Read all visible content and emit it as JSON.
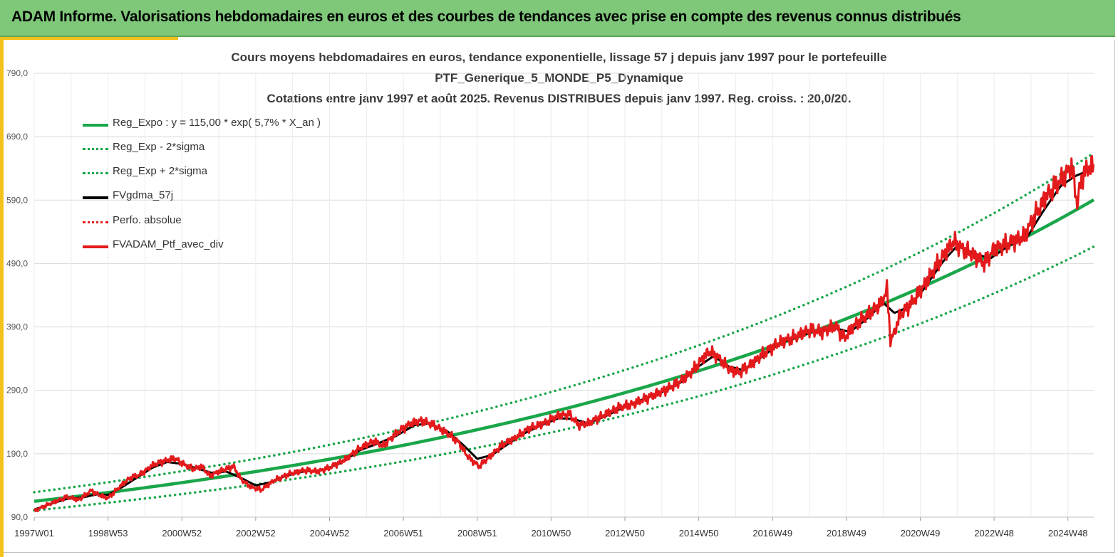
{
  "banner": {
    "title": "ADAM Informe. Valorisations hebdomadaires en euros et des courbes de tendances avec prise en compte des revenus connus distribués"
  },
  "chart_data": {
    "type": "line",
    "title_lines": [
      "Cours moyens hebdomadaires  en euros, tendance exponentielle, lissage 57 j depuis janv 1997 pour le portefeuille",
      "PTF_Generique_5_MONDE_P5_Dynamique",
      "Cotations entre janv 1997 et août 2025. Revenus DISTRIBUES depuis janv 1997. Reg. croiss. : 20,0/20."
    ],
    "xlabel": "",
    "ylabel": "",
    "x_ticks": [
      "1997W01",
      "1998W53",
      "2000W52",
      "2002W52",
      "2004W52",
      "2006W51",
      "2008W51",
      "2010W50",
      "2012W50",
      "2014W50",
      "2016W49",
      "2018W49",
      "2020W49",
      "2022W48",
      "2024W48"
    ],
    "x_tick_years": [
      1997,
      1999,
      2001,
      2003,
      2005,
      2007,
      2009,
      2011,
      2013,
      2015,
      2017,
      2019,
      2021,
      2023,
      2025
    ],
    "xlim": [
      1997.0,
      2025.7
    ],
    "y_ticks": [
      "90,0",
      "190,0",
      "290,0",
      "390,0",
      "490,0",
      "590,0",
      "690,0",
      "790,0"
    ],
    "ylim": [
      90,
      790
    ],
    "grid": true,
    "legend_position": "top-left",
    "regression": {
      "a": 115.0,
      "rate": 0.057,
      "sigma_factor": 0.125
    },
    "series": [
      {
        "name": "Reg_Expo : y = 115,00 * exp( 5,7% *  X_an )",
        "color": "#1aa64a",
        "style": "solid",
        "kind": "trend"
      },
      {
        "name": "Reg_Exp - 2*sigma",
        "color": "#1aa64a",
        "style": "dotted",
        "kind": "trend_low"
      },
      {
        "name": "Reg_Exp + 2*sigma",
        "color": "#1aa64a",
        "style": "dotted",
        "kind": "trend_high"
      },
      {
        "name": "FVgdma_57j",
        "color": "#000000",
        "style": "solid",
        "kind": "smooth"
      },
      {
        "name": "Perfo. absolue",
        "color": "#e31a1c",
        "style": "dotted",
        "kind": "none"
      },
      {
        "name": "FVADAM_Ptf_avec_div",
        "color": "#e31a1c",
        "style": "solid",
        "kind": "price"
      }
    ],
    "price_points": [
      [
        1997.0,
        100
      ],
      [
        1997.5,
        113
      ],
      [
        1997.9,
        122
      ],
      [
        1998.2,
        117
      ],
      [
        1998.55,
        132
      ],
      [
        1998.75,
        125
      ],
      [
        1999.0,
        120
      ],
      [
        1999.3,
        137
      ],
      [
        1999.6,
        152
      ],
      [
        1999.9,
        158
      ],
      [
        2000.2,
        172
      ],
      [
        2000.5,
        178
      ],
      [
        2000.8,
        183
      ],
      [
        2001.0,
        175
      ],
      [
        2001.3,
        166
      ],
      [
        2001.55,
        170
      ],
      [
        2001.75,
        155
      ],
      [
        2002.0,
        162
      ],
      [
        2002.4,
        170
      ],
      [
        2002.6,
        150
      ],
      [
        2002.85,
        138
      ],
      [
        2003.15,
        133
      ],
      [
        2003.5,
        148
      ],
      [
        2003.9,
        158
      ],
      [
        2004.3,
        164
      ],
      [
        2004.7,
        162
      ],
      [
        2005.0,
        168
      ],
      [
        2005.4,
        180
      ],
      [
        2005.8,
        198
      ],
      [
        2006.2,
        210
      ],
      [
        2006.45,
        202
      ],
      [
        2006.8,
        222
      ],
      [
        2007.2,
        238
      ],
      [
        2007.5,
        242
      ],
      [
        2007.8,
        236
      ],
      [
        2008.2,
        222
      ],
      [
        2008.5,
        208
      ],
      [
        2008.75,
        185
      ],
      [
        2009.05,
        170
      ],
      [
        2009.35,
        186
      ],
      [
        2009.7,
        205
      ],
      [
        2010.0,
        214
      ],
      [
        2010.4,
        230
      ],
      [
        2010.8,
        238
      ],
      [
        2011.2,
        250
      ],
      [
        2011.5,
        252
      ],
      [
        2011.75,
        235
      ],
      [
        2012.0,
        238
      ],
      [
        2012.4,
        250
      ],
      [
        2012.8,
        262
      ],
      [
        2013.2,
        268
      ],
      [
        2013.6,
        278
      ],
      [
        2014.0,
        288
      ],
      [
        2014.4,
        300
      ],
      [
        2014.8,
        318
      ],
      [
        2015.1,
        340
      ],
      [
        2015.3,
        352
      ],
      [
        2015.6,
        338
      ],
      [
        2015.85,
        322
      ],
      [
        2016.1,
        318
      ],
      [
        2016.4,
        330
      ],
      [
        2016.8,
        350
      ],
      [
        2017.2,
        366
      ],
      [
        2017.6,
        374
      ],
      [
        2018.0,
        385
      ],
      [
        2018.35,
        382
      ],
      [
        2018.7,
        392
      ],
      [
        2018.95,
        372
      ],
      [
        2019.2,
        392
      ],
      [
        2019.6,
        410
      ],
      [
        2019.95,
        428
      ],
      [
        2020.1,
        450
      ],
      [
        2020.2,
        365
      ],
      [
        2020.45,
        408
      ],
      [
        2020.8,
        430
      ],
      [
        2021.1,
        455
      ],
      [
        2021.5,
        492
      ],
      [
        2021.9,
        525
      ],
      [
        2022.1,
        515
      ],
      [
        2022.4,
        505
      ],
      [
        2022.75,
        490
      ],
      [
        2023.0,
        512
      ],
      [
        2023.4,
        522
      ],
      [
        2023.8,
        532
      ],
      [
        2024.1,
        565
      ],
      [
        2024.4,
        595
      ],
      [
        2024.7,
        615
      ],
      [
        2024.95,
        630
      ],
      [
        2025.1,
        645
      ],
      [
        2025.25,
        585
      ],
      [
        2025.4,
        630
      ],
      [
        2025.55,
        640
      ],
      [
        2025.7,
        645
      ]
    ],
    "smooth_points": [
      [
        1997.0,
        102
      ],
      [
        1997.5,
        112
      ],
      [
        1997.9,
        119
      ],
      [
        1998.3,
        121
      ],
      [
        1998.7,
        126
      ],
      [
        1999.0,
        125
      ],
      [
        1999.4,
        138
      ],
      [
        1999.8,
        153
      ],
      [
        2000.2,
        168
      ],
      [
        2000.6,
        177
      ],
      [
        2001.0,
        174
      ],
      [
        2001.4,
        167
      ],
      [
        2001.8,
        160
      ],
      [
        2002.2,
        162
      ],
      [
        2002.6,
        152
      ],
      [
        2003.0,
        140
      ],
      [
        2003.4,
        145
      ],
      [
        2003.8,
        155
      ],
      [
        2004.3,
        162
      ],
      [
        2004.8,
        164
      ],
      [
        2005.3,
        175
      ],
      [
        2005.8,
        195
      ],
      [
        2006.3,
        206
      ],
      [
        2006.8,
        218
      ],
      [
        2007.3,
        235
      ],
      [
        2007.7,
        238
      ],
      [
        2008.2,
        225
      ],
      [
        2008.6,
        205
      ],
      [
        2009.0,
        182
      ],
      [
        2009.4,
        188
      ],
      [
        2009.8,
        204
      ],
      [
        2010.2,
        220
      ],
      [
        2010.7,
        234
      ],
      [
        2011.2,
        246
      ],
      [
        2011.6,
        245
      ],
      [
        2012.0,
        238
      ],
      [
        2012.5,
        250
      ],
      [
        2013.0,
        264
      ],
      [
        2013.5,
        276
      ],
      [
        2014.0,
        287
      ],
      [
        2014.5,
        302
      ],
      [
        2015.0,
        328
      ],
      [
        2015.4,
        344
      ],
      [
        2015.8,
        328
      ],
      [
        2016.2,
        322
      ],
      [
        2016.7,
        342
      ],
      [
        2017.2,
        364
      ],
      [
        2017.7,
        375
      ],
      [
        2018.2,
        384
      ],
      [
        2018.7,
        388
      ],
      [
        2019.1,
        382
      ],
      [
        2019.6,
        405
      ],
      [
        2020.0,
        428
      ],
      [
        2020.3,
        412
      ],
      [
        2020.7,
        422
      ],
      [
        2021.1,
        450
      ],
      [
        2021.6,
        492
      ],
      [
        2022.0,
        518
      ],
      [
        2022.5,
        505
      ],
      [
        2022.9,
        498
      ],
      [
        2023.4,
        518
      ],
      [
        2023.9,
        532
      ],
      [
        2024.3,
        570
      ],
      [
        2024.8,
        612
      ],
      [
        2025.2,
        628
      ],
      [
        2025.7,
        640
      ]
    ]
  }
}
